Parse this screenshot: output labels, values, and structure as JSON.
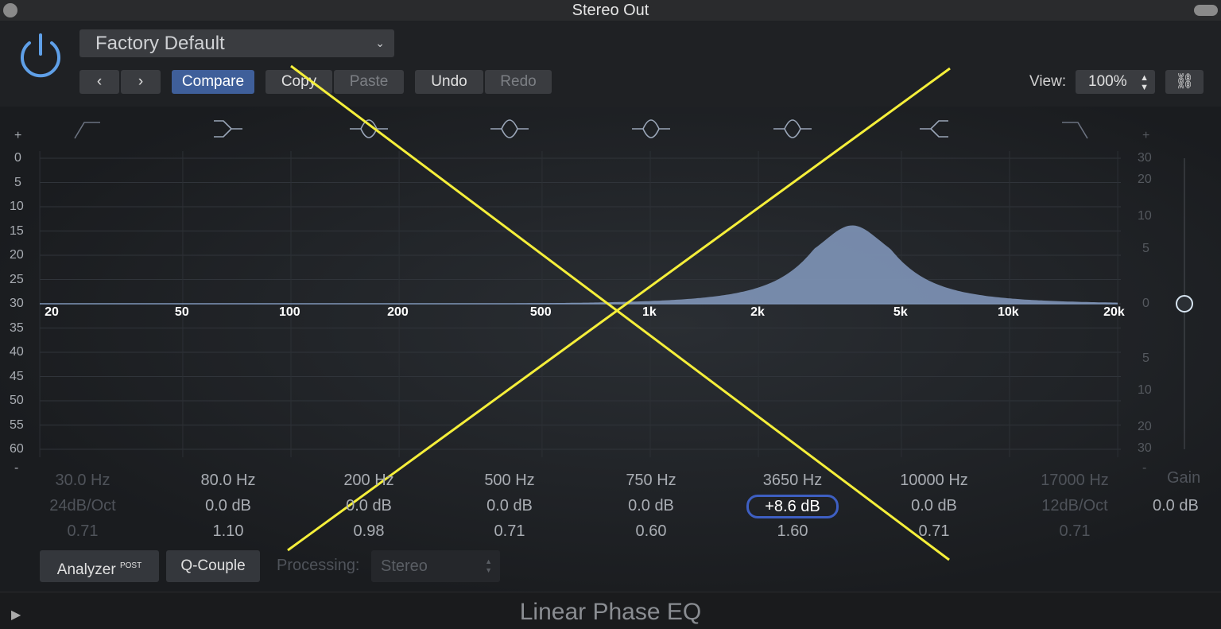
{
  "window": {
    "title": "Stereo Out"
  },
  "header": {
    "preset": "Factory Default",
    "compare": "Compare",
    "copy": "Copy",
    "paste": "Paste",
    "undo": "Undo",
    "redo": "Redo",
    "view_label": "View:",
    "view_value": "100%"
  },
  "graph": {
    "analyzer_scale": [
      "+",
      "0",
      "5",
      "10",
      "15",
      "20",
      "25",
      "30",
      "35",
      "40",
      "45",
      "50",
      "55",
      "60",
      "-"
    ],
    "gain_scale": [
      "+",
      "30",
      "20",
      "10",
      "5",
      "0",
      "5",
      "10",
      "20",
      "30",
      "-"
    ],
    "freq_labels": [
      "20",
      "50",
      "100",
      "200",
      "500",
      "1k",
      "2k",
      "5k",
      "10k",
      "20k"
    ],
    "curve": {
      "freq_hz": 3650,
      "gain_db": 8.6,
      "q": 1.6,
      "color": "#7f95b8"
    }
  },
  "bands": [
    {
      "freq": "30.0 Hz",
      "gain": "24dB/Oct",
      "q": "0.71",
      "enabled": false,
      "icon": "low-cut-icon"
    },
    {
      "freq": "80.0 Hz",
      "gain": "0.0 dB",
      "q": "1.10",
      "enabled": true,
      "icon": "low-shelf-icon"
    },
    {
      "freq": "200 Hz",
      "gain": "0.0 dB",
      "q": "0.98",
      "enabled": true,
      "icon": "bell-icon"
    },
    {
      "freq": "500 Hz",
      "gain": "0.0 dB",
      "q": "0.71",
      "enabled": true,
      "icon": "bell-icon"
    },
    {
      "freq": "750 Hz",
      "gain": "0.0 dB",
      "q": "0.60",
      "enabled": true,
      "icon": "bell-icon"
    },
    {
      "freq": "3650 Hz",
      "gain": "+8.6 dB",
      "q": "1.60",
      "enabled": true,
      "icon": "bell-icon",
      "selected": true
    },
    {
      "freq": "10000 Hz",
      "gain": "0.0 dB",
      "q": "0.71",
      "enabled": true,
      "icon": "high-shelf-icon"
    },
    {
      "freq": "17000 Hz",
      "gain": "12dB/Oct",
      "q": "0.71",
      "enabled": false,
      "icon": "high-cut-icon"
    }
  ],
  "master": {
    "label": "Gain",
    "value": "0.0 dB"
  },
  "footer": {
    "analyzer": "Analyzer",
    "post": "POST",
    "qcouple": "Q-Couple",
    "processing_label": "Processing:",
    "processing_value": "Stereo",
    "plugin_name": "Linear Phase EQ"
  },
  "overlay": {
    "color": "#f5ef3a"
  }
}
